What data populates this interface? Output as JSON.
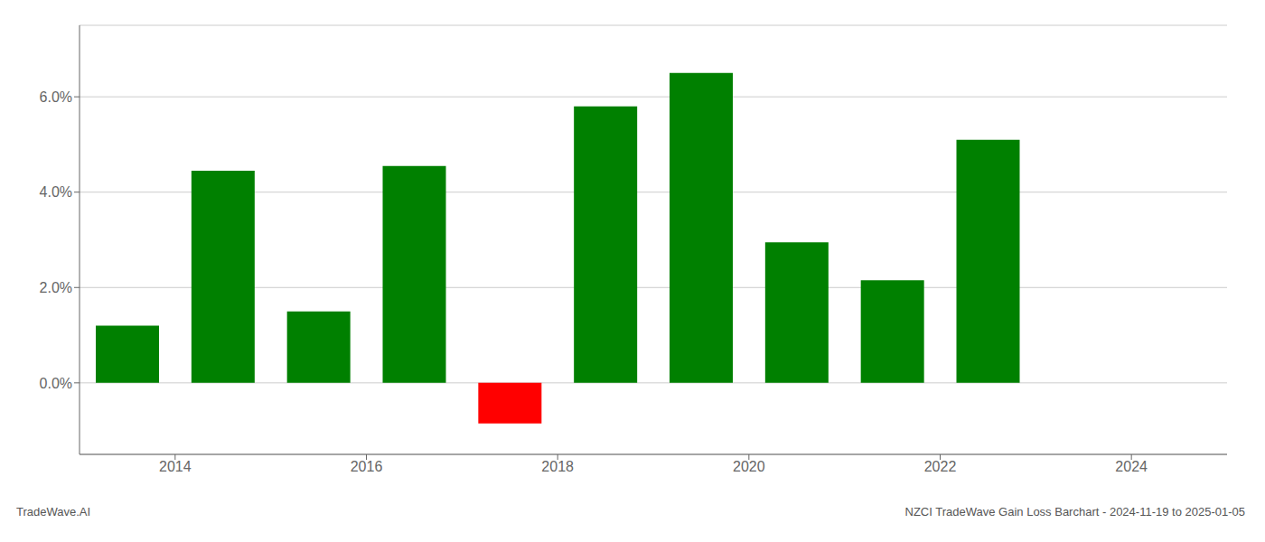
{
  "chart_data": {
    "type": "bar",
    "x": [
      2013.5,
      2014.5,
      2015.5,
      2016.5,
      2017.5,
      2018.5,
      2019.5,
      2020.5,
      2021.5,
      2022.5
    ],
    "values": [
      1.2,
      4.45,
      1.5,
      4.55,
      -0.85,
      5.8,
      6.5,
      2.95,
      2.15,
      5.1
    ],
    "colors": [
      "#008000",
      "#008000",
      "#008000",
      "#008000",
      "#ff0000",
      "#008000",
      "#008000",
      "#008000",
      "#008000",
      "#008000"
    ],
    "xlim": [
      2013.0,
      2025.0
    ],
    "xticks": [
      2014,
      2016,
      2018,
      2020,
      2022,
      2024
    ],
    "ylim": [
      -1.5,
      7.5
    ],
    "yticks": [
      {
        "value": 0.0,
        "label": "0.0%"
      },
      {
        "value": 2.0,
        "label": "2.0%"
      },
      {
        "value": 4.0,
        "label": "4.0%"
      },
      {
        "value": 6.0,
        "label": "6.0%"
      }
    ],
    "grid": true,
    "annotations": [
      "TradeWave.AI",
      "NZCI TradeWave Gain Loss Barchart - 2024-11-19 to 2025-01-05"
    ]
  }
}
